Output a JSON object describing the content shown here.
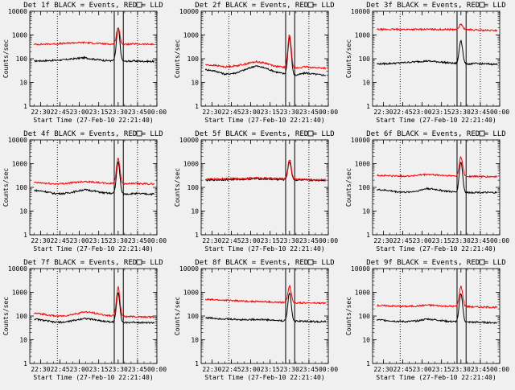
{
  "figure": {
    "background": "#f0f0f0",
    "axis_color": "#000000",
    "events_color": "#000000",
    "lld_color": "#ff0000",
    "window_marker_count": 1
  },
  "chart_data": [
    {
      "type": "line",
      "title": "Det 1f BLACK = Events, RED = LLD",
      "xlabel": "Start Time (27-Feb-10 22:21:40)",
      "ylabel": "Counts/sec",
      "x_ticks": [
        "22:30",
        "22:45",
        "23:00",
        "23:15",
        "23:30",
        "23:45",
        "00:00"
      ],
      "x_range": [
        "22:21:40",
        "00:00:00"
      ],
      "y_scale": "log",
      "ylim": [
        1,
        10000
      ],
      "y_ticks": [
        "1",
        "10",
        "100",
        "1000",
        "10000"
      ],
      "dotted_times": [
        "22:43",
        "23:45"
      ],
      "solid_times": [
        "23:27",
        "23:34"
      ],
      "series": [
        {
          "name": "Events",
          "color": "#000000",
          "values": [
            80,
            82,
            85,
            90,
            100,
            110,
            95,
            85,
            80,
            78,
            2000,
            80,
            78,
            77
          ]
        },
        {
          "name": "LLD",
          "color": "#ff0000",
          "values": [
            400,
            410,
            420,
            440,
            470,
            480,
            450,
            420,
            410,
            400,
            2000,
            420,
            410,
            405
          ]
        }
      ]
    },
    {
      "type": "line",
      "title": "Det 2f BLACK = Events, RED = LLD",
      "xlabel": "Start Time (27-Feb-10 22:21:40)",
      "ylabel": "Counts/sec",
      "x_ticks": [
        "22:30",
        "22:45",
        "23:00",
        "23:15",
        "23:30",
        "23:45",
        "00:00"
      ],
      "x_range": [
        "22:21:40",
        "00:00:00"
      ],
      "y_scale": "log",
      "ylim": [
        1,
        10000
      ],
      "y_ticks": [
        "1",
        "10",
        "100",
        "1000",
        "10000"
      ],
      "dotted_times": [
        "22:43",
        "23:45"
      ],
      "solid_times": [
        "23:27",
        "23:34"
      ],
      "series": [
        {
          "name": "Events",
          "color": "#000000",
          "values": [
            35,
            30,
            22,
            25,
            35,
            50,
            40,
            28,
            22,
            20,
            800,
            25,
            22,
            20
          ]
        },
        {
          "name": "LLD",
          "color": "#ff0000",
          "values": [
            55,
            52,
            45,
            50,
            60,
            75,
            65,
            48,
            42,
            40,
            1000,
            45,
            42,
            40
          ]
        }
      ]
    },
    {
      "type": "line",
      "title": "Det 3f BLACK = Events, RED = LLD",
      "xlabel": "Start Time (27-Feb-10 22:21:40)",
      "ylabel": "Counts/sec",
      "x_ticks": [
        "22:30",
        "22:45",
        "23:00",
        "23:15",
        "23:30",
        "23:45",
        "00:00"
      ],
      "x_range": [
        "22:21:40",
        "00:00:00"
      ],
      "y_scale": "log",
      "ylim": [
        1,
        10000
      ],
      "y_ticks": [
        "1",
        "10",
        "100",
        "1000",
        "10000"
      ],
      "dotted_times": [
        "22:43",
        "23:45"
      ],
      "solid_times": [
        "23:27",
        "23:34"
      ],
      "series": [
        {
          "name": "Events",
          "color": "#000000",
          "values": [
            60,
            62,
            65,
            70,
            75,
            80,
            75,
            68,
            62,
            60,
            600,
            62,
            60,
            58
          ]
        },
        {
          "name": "LLD",
          "color": "#ff0000",
          "values": [
            1700,
            1700,
            1710,
            1720,
            1720,
            1730,
            1720,
            1710,
            1700,
            1700,
            2800,
            1600,
            1550,
            1550
          ]
        }
      ]
    },
    {
      "type": "line",
      "title": "Det 4f BLACK = Events, RED = LLD",
      "xlabel": "Start Time (27-Feb-10 22:21:40)",
      "ylabel": "Counts/sec",
      "x_ticks": [
        "22:30",
        "22:45",
        "23:00",
        "23:15",
        "23:30",
        "23:45",
        "00:00"
      ],
      "x_range": [
        "22:21:40",
        "00:00:00"
      ],
      "y_scale": "log",
      "ylim": [
        1,
        10000
      ],
      "y_ticks": [
        "1",
        "10",
        "100",
        "1000",
        "10000"
      ],
      "dotted_times": [
        "22:43",
        "23:45"
      ],
      "solid_times": [
        "23:27",
        "23:34"
      ],
      "series": [
        {
          "name": "Events",
          "color": "#000000",
          "values": [
            75,
            68,
            55,
            55,
            65,
            80,
            70,
            58,
            55,
            52,
            1200,
            55,
            53,
            52
          ]
        },
        {
          "name": "LLD",
          "color": "#ff0000",
          "values": [
            160,
            150,
            140,
            145,
            160,
            180,
            165,
            150,
            145,
            140,
            1800,
            145,
            140,
            140
          ]
        }
      ]
    },
    {
      "type": "line",
      "title": "Det 5f BLACK = Events, RED = LLD",
      "xlabel": "Start Time (27-Feb-10 22:21:40)",
      "ylabel": "Counts/sec",
      "x_ticks": [
        "22:30",
        "22:45",
        "23:00",
        "23:15",
        "23:30",
        "23:45",
        "00:00"
      ],
      "x_range": [
        "22:21:40",
        "00:00:00"
      ],
      "y_scale": "log",
      "ylim": [
        1,
        10000
      ],
      "y_ticks": [
        "1",
        "10",
        "100",
        "1000",
        "10000"
      ],
      "dotted_times": [
        "22:43",
        "23:45"
      ],
      "solid_times": [
        "23:27",
        "23:34"
      ],
      "series": [
        {
          "name": "Events",
          "color": "#000000",
          "values": [
            200,
            205,
            210,
            215,
            220,
            230,
            225,
            215,
            210,
            205,
            1200,
            200,
            200,
            200
          ]
        },
        {
          "name": "LLD",
          "color": "#ff0000",
          "values": [
            220,
            225,
            230,
            235,
            240,
            250,
            245,
            235,
            230,
            225,
            1500,
            215,
            210,
            210
          ]
        }
      ]
    },
    {
      "type": "line",
      "title": "Det 6f BLACK = Events, RED = LLD",
      "xlabel": "Start Time (27-Feb-10 22:21:40)",
      "ylabel": "Counts/sec",
      "x_ticks": [
        "22:30",
        "22:45",
        "23:00",
        "23:15",
        "23:30",
        "23:45",
        "00:00"
      ],
      "x_range": [
        "22:21:40",
        "00:00:00"
      ],
      "y_scale": "log",
      "ylim": [
        1,
        10000
      ],
      "y_ticks": [
        "1",
        "10",
        "100",
        "1000",
        "10000"
      ],
      "dotted_times": [
        "22:43",
        "23:45"
      ],
      "solid_times": [
        "23:27",
        "23:34"
      ],
      "series": [
        {
          "name": "Events",
          "color": "#000000",
          "values": [
            80,
            75,
            65,
            62,
            70,
            90,
            80,
            68,
            62,
            60,
            1200,
            62,
            60,
            60
          ]
        },
        {
          "name": "LLD",
          "color": "#ff0000",
          "values": [
            320,
            310,
            300,
            300,
            320,
            350,
            330,
            310,
            300,
            290,
            1900,
            290,
            280,
            280
          ]
        }
      ]
    },
    {
      "type": "line",
      "title": "Det 7f BLACK = Events, RED = LLD",
      "xlabel": "Start Time (27-Feb-10 22:21:40)",
      "ylabel": "Counts/sec",
      "x_ticks": [
        "22:30",
        "22:45",
        "23:00",
        "23:15",
        "23:30",
        "23:45",
        "00:00"
      ],
      "x_range": [
        "22:21:40",
        "00:00:00"
      ],
      "y_scale": "log",
      "ylim": [
        1,
        10000
      ],
      "y_ticks": [
        "1",
        "10",
        "100",
        "1000",
        "10000"
      ],
      "dotted_times": [
        "22:43",
        "23:45"
      ],
      "solid_times": [
        "23:27",
        "23:34"
      ],
      "series": [
        {
          "name": "Events",
          "color": "#000000",
          "values": [
            75,
            65,
            55,
            55,
            65,
            80,
            70,
            60,
            55,
            52,
            1000,
            55,
            53,
            52
          ]
        },
        {
          "name": "LLD",
          "color": "#ff0000",
          "values": [
            130,
            120,
            100,
            100,
            120,
            150,
            135,
            110,
            100,
            95,
            1600,
            95,
            92,
            90
          ]
        }
      ]
    },
    {
      "type": "line",
      "title": "Det 8f BLACK = Events, RED = LLD",
      "xlabel": "Start Time (27-Feb-10 22:21:40)",
      "ylabel": "Counts/sec",
      "x_ticks": [
        "22:30",
        "22:45",
        "23:00",
        "23:15",
        "23:30",
        "23:45",
        "00:00"
      ],
      "x_range": [
        "22:21:40",
        "00:00:00"
      ],
      "y_scale": "log",
      "ylim": [
        1,
        10000
      ],
      "y_ticks": [
        "1",
        "10",
        "100",
        "1000",
        "10000"
      ],
      "dotted_times": [
        "22:43",
        "23:45"
      ],
      "solid_times": [
        "23:27",
        "23:34"
      ],
      "series": [
        {
          "name": "Events",
          "color": "#000000",
          "values": [
            85,
            80,
            75,
            72,
            70,
            72,
            70,
            65,
            62,
            60,
            1000,
            60,
            58,
            58
          ]
        },
        {
          "name": "LLD",
          "color": "#ff0000",
          "values": [
            500,
            480,
            460,
            440,
            420,
            410,
            400,
            380,
            370,
            360,
            1800,
            360,
            350,
            350
          ]
        }
      ]
    },
    {
      "type": "line",
      "title": "Det 9f BLACK = Events, RED = LLD",
      "xlabel": "Start Time (27-Feb-10 22:21:40)",
      "ylabel": "Counts/sec",
      "x_ticks": [
        "22:30",
        "22:45",
        "23:00",
        "23:15",
        "23:30",
        "23:45",
        "00:00"
      ],
      "x_range": [
        "22:21:40",
        "00:00:00"
      ],
      "y_scale": "log",
      "ylim": [
        1,
        10000
      ],
      "y_ticks": [
        "1",
        "10",
        "100",
        "1000",
        "10000"
      ],
      "dotted_times": [
        "22:43",
        "23:45"
      ],
      "solid_times": [
        "23:27",
        "23:34"
      ],
      "series": [
        {
          "name": "Events",
          "color": "#000000",
          "values": [
            70,
            65,
            60,
            58,
            62,
            75,
            68,
            60,
            57,
            55,
            900,
            55,
            53,
            52
          ]
        },
        {
          "name": "LLD",
          "color": "#ff0000",
          "values": [
            280,
            270,
            260,
            255,
            265,
            290,
            275,
            260,
            255,
            250,
            1800,
            240,
            235,
            235
          ]
        }
      ]
    }
  ]
}
